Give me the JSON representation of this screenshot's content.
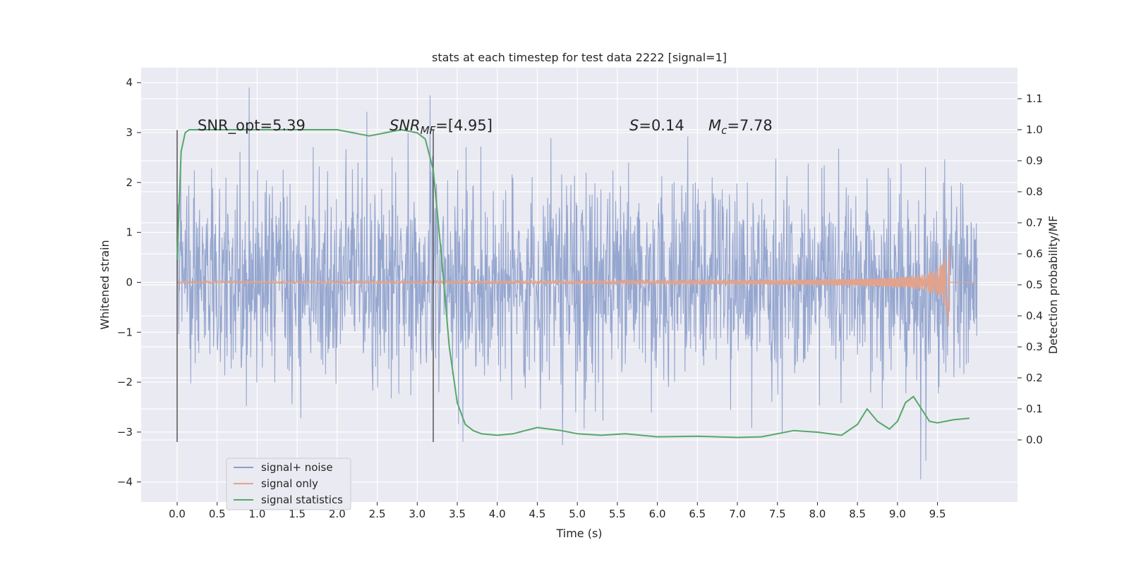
{
  "chart_data": {
    "type": "line",
    "title": "stats at each timestep for test data 2222 [signal=1]",
    "xlabel": "Time (s)",
    "ylabel": "Whitened strain",
    "y2label": "Detection probability/MF",
    "xlim": [
      -0.45,
      10.5
    ],
    "ylim": [
      -4.4,
      4.3
    ],
    "y2lim": [
      -0.2,
      1.2
    ],
    "xticks": [
      0.0,
      0.5,
      1.0,
      1.5,
      2.0,
      2.5,
      3.0,
      3.5,
      4.0,
      4.5,
      5.0,
      5.5,
      6.0,
      6.5,
      7.0,
      7.5,
      8.0,
      8.5,
      9.0,
      9.5
    ],
    "yticks": [
      4,
      3,
      2,
      1,
      0,
      -1,
      -2,
      -3,
      -4
    ],
    "y2ticks": [
      1.1,
      1.0,
      0.9,
      0.8,
      0.7,
      0.6,
      0.5,
      0.4,
      0.3,
      0.2,
      0.1,
      0.0
    ],
    "grid": true,
    "legend_position": "lower-left",
    "series": [
      {
        "name": "signal+ noise",
        "color": "#8c9fcb",
        "axis": "left",
        "description_values": {
          "x_range": [
            0.0,
            10.0
          ],
          "typical_range": [
            -2.0,
            2.0
          ],
          "max": 3.9,
          "min": -4.0
        }
      },
      {
        "name": "signal only",
        "color": "#e1a38d",
        "axis": "left",
        "description_values": {
          "x_range": [
            0.0,
            10.0
          ],
          "peak": 0.9,
          "peak_x": 9.65
        }
      },
      {
        "name": "signal statistics",
        "color": "#55a868",
        "axis": "right",
        "x": [
          0.0,
          0.05,
          0.1,
          0.15,
          0.3,
          0.6,
          1.0,
          1.5,
          2.0,
          2.2,
          2.4,
          2.6,
          2.8,
          3.0,
          3.1,
          3.2,
          3.3,
          3.4,
          3.5,
          3.6,
          3.7,
          3.8,
          4.0,
          4.2,
          4.5,
          4.8,
          5.0,
          5.3,
          5.6,
          6.0,
          6.5,
          7.0,
          7.3,
          7.7,
          8.0,
          8.3,
          8.5,
          8.62,
          8.75,
          8.9,
          9.0,
          9.1,
          9.2,
          9.3,
          9.4,
          9.5,
          9.7,
          9.9
        ],
        "y": [
          0.58,
          0.93,
          0.99,
          1.0,
          1.0,
          1.0,
          1.0,
          1.0,
          1.0,
          0.99,
          0.98,
          0.99,
          1.0,
          0.99,
          0.97,
          0.87,
          0.6,
          0.3,
          0.12,
          0.05,
          0.03,
          0.02,
          0.015,
          0.02,
          0.04,
          0.03,
          0.02,
          0.015,
          0.02,
          0.01,
          0.012,
          0.008,
          0.01,
          0.03,
          0.025,
          0.015,
          0.05,
          0.1,
          0.06,
          0.035,
          0.06,
          0.12,
          0.14,
          0.1,
          0.06,
          0.055,
          0.065,
          0.07
        ]
      }
    ],
    "vlines": [
      0.0,
      3.2
    ],
    "annotations": [
      {
        "text": "SNR_opt=5.39",
        "x": 0.2
      },
      {
        "text": "SNR_MF=[4.95]",
        "x": 2.6
      },
      {
        "text": "S=0.14",
        "x": 5.6
      },
      {
        "text": "M_c=7.78",
        "x": 6.6
      }
    ]
  }
}
